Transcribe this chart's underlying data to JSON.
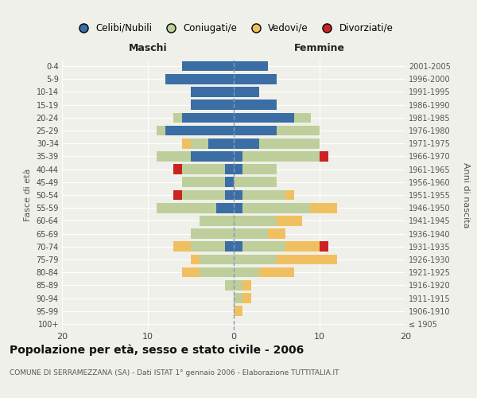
{
  "age_groups": [
    "100+",
    "95-99",
    "90-94",
    "85-89",
    "80-84",
    "75-79",
    "70-74",
    "65-69",
    "60-64",
    "55-59",
    "50-54",
    "45-49",
    "40-44",
    "35-39",
    "30-34",
    "25-29",
    "20-24",
    "15-19",
    "10-14",
    "5-9",
    "0-4"
  ],
  "birth_years": [
    "≤ 1905",
    "1906-1910",
    "1911-1915",
    "1916-1920",
    "1921-1925",
    "1926-1930",
    "1931-1935",
    "1936-1940",
    "1941-1945",
    "1946-1950",
    "1951-1955",
    "1956-1960",
    "1961-1965",
    "1966-1970",
    "1971-1975",
    "1976-1980",
    "1981-1985",
    "1986-1990",
    "1991-1995",
    "1996-2000",
    "2001-2005"
  ],
  "males": {
    "celibi": [
      0,
      0,
      0,
      0,
      0,
      0,
      1,
      0,
      0,
      2,
      1,
      1,
      1,
      5,
      3,
      8,
      6,
      5,
      5,
      8,
      6
    ],
    "coniugati": [
      0,
      0,
      0,
      1,
      4,
      4,
      4,
      5,
      4,
      7,
      5,
      5,
      5,
      4,
      2,
      1,
      1,
      0,
      0,
      0,
      0
    ],
    "vedovi": [
      0,
      0,
      0,
      0,
      2,
      1,
      2,
      0,
      0,
      0,
      0,
      0,
      0,
      0,
      1,
      0,
      0,
      0,
      0,
      0,
      0
    ],
    "divorziati": [
      0,
      0,
      0,
      0,
      0,
      0,
      0,
      0,
      0,
      0,
      1,
      0,
      1,
      0,
      0,
      0,
      0,
      0,
      0,
      0,
      0
    ]
  },
  "females": {
    "nubili": [
      0,
      0,
      0,
      0,
      0,
      0,
      1,
      0,
      0,
      1,
      1,
      0,
      1,
      1,
      3,
      5,
      7,
      5,
      3,
      5,
      4
    ],
    "coniugate": [
      0,
      0,
      1,
      1,
      3,
      5,
      5,
      4,
      5,
      8,
      5,
      5,
      4,
      9,
      7,
      5,
      2,
      0,
      0,
      0,
      0
    ],
    "vedove": [
      0,
      1,
      1,
      1,
      4,
      7,
      4,
      2,
      3,
      3,
      1,
      0,
      0,
      0,
      0,
      0,
      0,
      0,
      0,
      0,
      0
    ],
    "divorziate": [
      0,
      0,
      0,
      0,
      0,
      0,
      1,
      0,
      0,
      0,
      0,
      0,
      0,
      1,
      0,
      0,
      0,
      0,
      0,
      0,
      0
    ]
  },
  "colors": {
    "celibi": "#3A6EA5",
    "coniugati": "#BECF9C",
    "vedovi": "#F0C060",
    "divorziati": "#CC2222"
  },
  "title": "Popolazione per età, sesso e stato civile - 2006",
  "subtitle": "COMUNE DI SERRAMEZZANA (SA) - Dati ISTAT 1° gennaio 2006 - Elaborazione TUTTITALIA.IT",
  "xlabel_left": "Maschi",
  "xlabel_right": "Femmine",
  "ylabel_left": "Fasce di età",
  "ylabel_right": "Anni di nascita",
  "xlim": 20,
  "legend_labels": [
    "Celibi/Nubili",
    "Coniugati/e",
    "Vedovi/e",
    "Divorziati/e"
  ],
  "bg_color": "#f0f0eb"
}
